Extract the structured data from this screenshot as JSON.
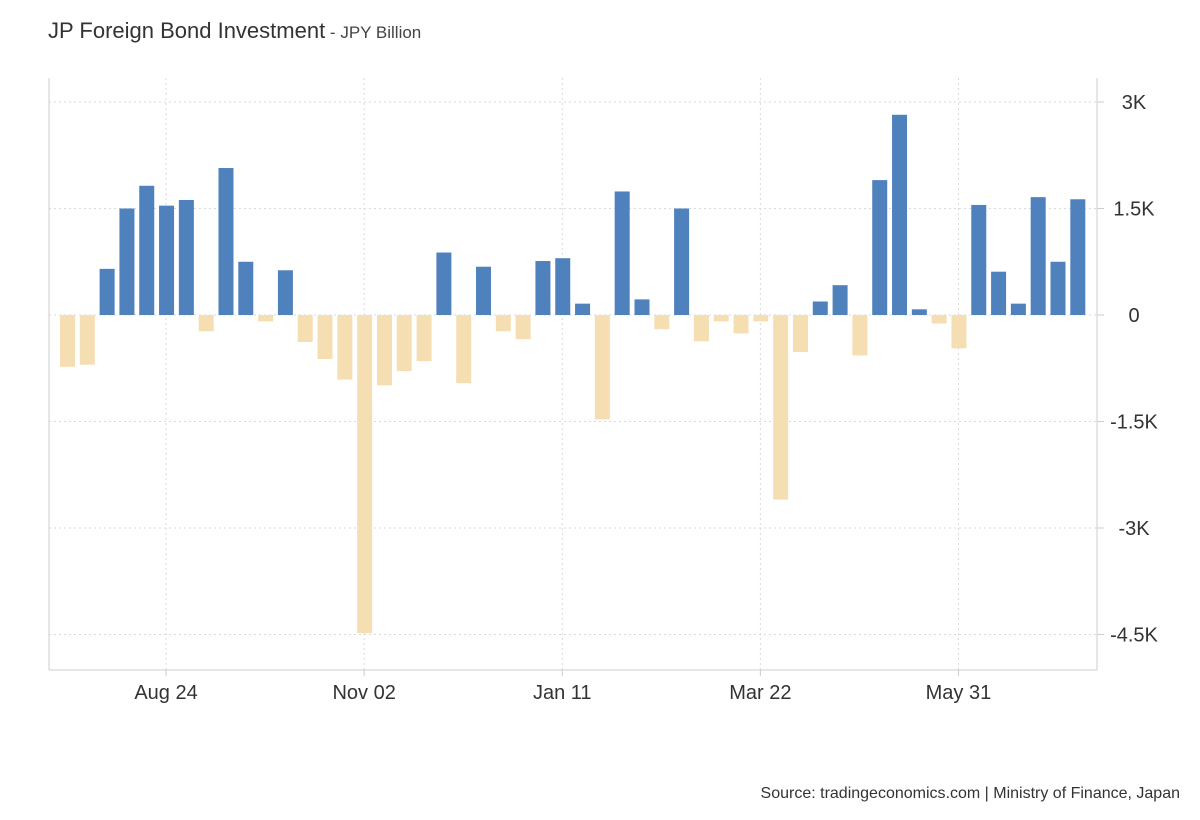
{
  "header": {
    "title": "JP Foreign Bond Investment",
    "separator": " - ",
    "unit": "JPY Billion"
  },
  "footer": {
    "source": "Source: tradingeconomics.com | Ministry of Finance, Japan"
  },
  "colors": {
    "positive": "#4f81bd",
    "negative": "#f6deb3",
    "grid": "#d9d9d9",
    "axis": "#cccccc",
    "text": "#333333"
  },
  "chart_data": {
    "type": "bar",
    "title": "JP Foreign Bond Investment",
    "subtitle": "JPY Billion",
    "ylim": [
      -5000,
      3250
    ],
    "y_ticks": [
      3000,
      1500,
      0,
      -1500,
      -3000,
      -4500
    ],
    "y_tick_labels": [
      "3K",
      "1.5K",
      "0",
      "-1.5K",
      "-3K",
      "-4.5K"
    ],
    "x_tick_labels": [
      "Aug 24",
      "Nov 02",
      "Jan 11",
      "Mar 22",
      "May 31"
    ],
    "x_tick_bar_index": [
      5,
      15,
      25,
      35,
      45
    ],
    "grid": true,
    "values": [
      -730,
      -700,
      650,
      1500,
      1820,
      1540,
      1620,
      -230,
      2070,
      750,
      -90,
      630,
      -380,
      -620,
      -910,
      -4480,
      -990,
      -790,
      -650,
      880,
      -960,
      680,
      -230,
      -340,
      760,
      800,
      160,
      -1470,
      1740,
      220,
      -200,
      1500,
      -370,
      -90,
      -260,
      -90,
      -2600,
      -520,
      190,
      420,
      -570,
      1900,
      2820,
      80,
      -120,
      -470,
      1550,
      610,
      160,
      1660,
      750,
      1630
    ]
  }
}
